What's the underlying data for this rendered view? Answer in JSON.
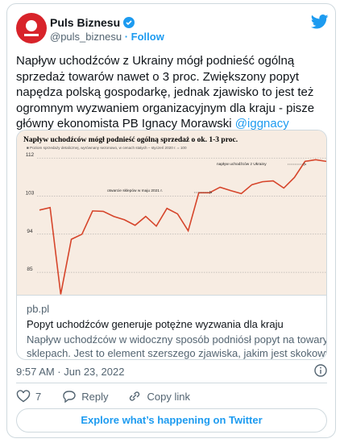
{
  "tweet": {
    "author": "Puls Biznesu",
    "handle": "@puls_biznesu",
    "follow": "· Follow",
    "text_lines": [
      "Napływ uchodźców z Ukrainy mógł podnieść ogólną",
      "sprzedaż towarów nawet o 3 proc. Zwiększony popyt",
      "napędza polską gospodarkę, jednak zjawisko to jest też",
      "ogromnym wyzwaniem organizacyjnym dla kraju - pisze",
      "główny ekonomista PB Ignacy Morawski"
    ],
    "mention": "@iggnacy",
    "card": {
      "domain": "pb.pl",
      "title": "Popyt uchodźców generuje potężne wyzwania dla kraju",
      "description_lines": [
        "Napływ uchodźców w widoczny sposób podniósł popyt na towary w",
        "sklepach. Jest to element szerszego zjawiska, jakim jest skokowy wzro…"
      ]
    },
    "timestamp": "9:57 AM · Jun 23, 2022",
    "likes": 7,
    "reply": "Reply",
    "copy_link": "Copy link",
    "explore": "Explore what’s happening on Twitter"
  },
  "chart_data": {
    "type": "line",
    "title": "Napływ uchodźców mógł podnieść ogólną sprzedaż o ok. 1-3 proc.",
    "subtitle": "■ Poziom sprzedaży detalicznej, wyrównany sezonowo, w cenach stałych – styczeń 2020 r. = 100",
    "annotations": [
      "napływ uchodźców z Ukrainy",
      "otwarcie sklepów w maju 2021 r."
    ],
    "categories": [
      null,
      null,
      null,
      null,
      null,
      null,
      null,
      null,
      null,
      null,
      null,
      null,
      null,
      null,
      null,
      null,
      null,
      null,
      null,
      null,
      null,
      null,
      null,
      null,
      null,
      null,
      null,
      null
    ],
    "values": [
      99.7,
      100.3,
      79.8,
      92.8,
      94.0,
      99.5,
      99.4,
      98.2,
      97.4,
      96.1,
      98.2,
      95.9,
      100.1,
      98.8,
      94.8,
      103.8,
      103.8,
      105.1,
      104.3,
      103.6,
      105.7,
      106.4,
      106.6,
      104.9,
      107.4,
      111.2,
      111.6,
      111.2
    ],
    "color": "#d6452b",
    "ylim": [
      79.5,
      114.7
    ],
    "yticks": [
      85,
      94,
      103,
      112
    ],
    "grid": true
  }
}
